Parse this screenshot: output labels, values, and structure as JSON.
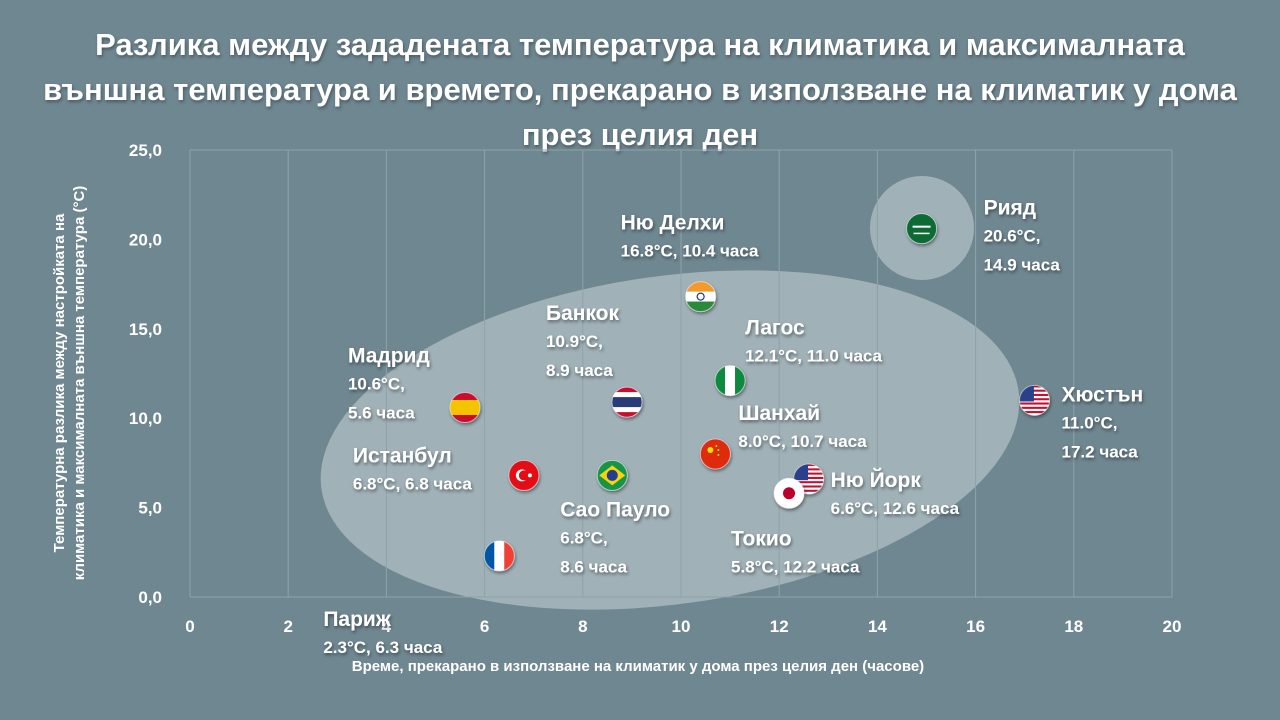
{
  "chart_data": {
    "type": "scatter",
    "title": "Разлика между зададената температура на климатика и максималната външна температура и времето, прекарано в използване на климатик у дома през целия ден",
    "xlabel": "Време, прекарано  в използване на климатик у дома през целия ден (часове)",
    "ylabel_line1": "Температурна  разлика  между настройката на",
    "ylabel_line2": "климатика и максималната  външна температура  (°C)",
    "xlim": [
      0,
      20
    ],
    "ylim": [
      0,
      25
    ],
    "x_ticks": [
      "0",
      "2",
      "4",
      "6",
      "8",
      "10",
      "12",
      "14",
      "16",
      "18",
      "20"
    ],
    "y_ticks": [
      "0,0",
      "5,0",
      "10,0",
      "15,0",
      "20,0",
      "25,0"
    ],
    "grid": "vertical",
    "points": [
      {
        "city": "Рияд",
        "x": 14.9,
        "y": 20.6,
        "icon": "flag-saudi-arabia",
        "label_lines": [
          "20.6°C,",
          "14.9 часа"
        ]
      },
      {
        "city": "Ню Делхи",
        "x": 10.4,
        "y": 16.8,
        "icon": "flag-india",
        "label_lines": [
          "16.8°C, 10.4 часа"
        ]
      },
      {
        "city": "Лагос",
        "x": 11.0,
        "y": 12.1,
        "icon": "flag-nigeria",
        "label_lines": [
          "12.1°C, 11.0 часа"
        ]
      },
      {
        "city": "Хюстън",
        "x": 17.2,
        "y": 11.0,
        "icon": "flag-usa",
        "label_lines": [
          "11.0°C,",
          "17.2 часа"
        ]
      },
      {
        "city": "Банкок",
        "x": 8.9,
        "y": 10.9,
        "icon": "flag-thailand",
        "label_lines": [
          "10.9°C,",
          "8.9 часа"
        ]
      },
      {
        "city": "Мадрид",
        "x": 5.6,
        "y": 10.6,
        "icon": "flag-spain",
        "label_lines": [
          "10.6°C,",
          "5.6 часа"
        ]
      },
      {
        "city": "Шанхай",
        "x": 10.7,
        "y": 8.0,
        "icon": "flag-china",
        "label_lines": [
          "8.0°C, 10.7 часа"
        ]
      },
      {
        "city": "Истанбул",
        "x": 6.8,
        "y": 6.8,
        "icon": "flag-turkey",
        "label_lines": [
          "6.8°C, 6.8 часа"
        ]
      },
      {
        "city": "Сао Пауло",
        "x": 8.6,
        "y": 6.8,
        "icon": "flag-brazil",
        "label_lines": [
          "6.8°C,",
          "8.6 часа"
        ]
      },
      {
        "city": "Ню Йорк",
        "x": 12.6,
        "y": 6.6,
        "icon": "flag-usa",
        "label_lines": [
          "6.6°C, 12.6 часа"
        ]
      },
      {
        "city": "Токио",
        "x": 12.2,
        "y": 5.8,
        "icon": "flag-japan",
        "label_lines": [
          "5.8°C, 12.2 часа"
        ]
      },
      {
        "city": "Париж",
        "x": 6.3,
        "y": 2.3,
        "icon": "flag-france",
        "label_lines": [
          "2.3°C, 6.3 часа"
        ]
      }
    ],
    "colors": {
      "background": "#6f8791",
      "text": "#ffffff",
      "grid": "#8fa3ab",
      "highlight": "#c9d3d7"
    }
  }
}
